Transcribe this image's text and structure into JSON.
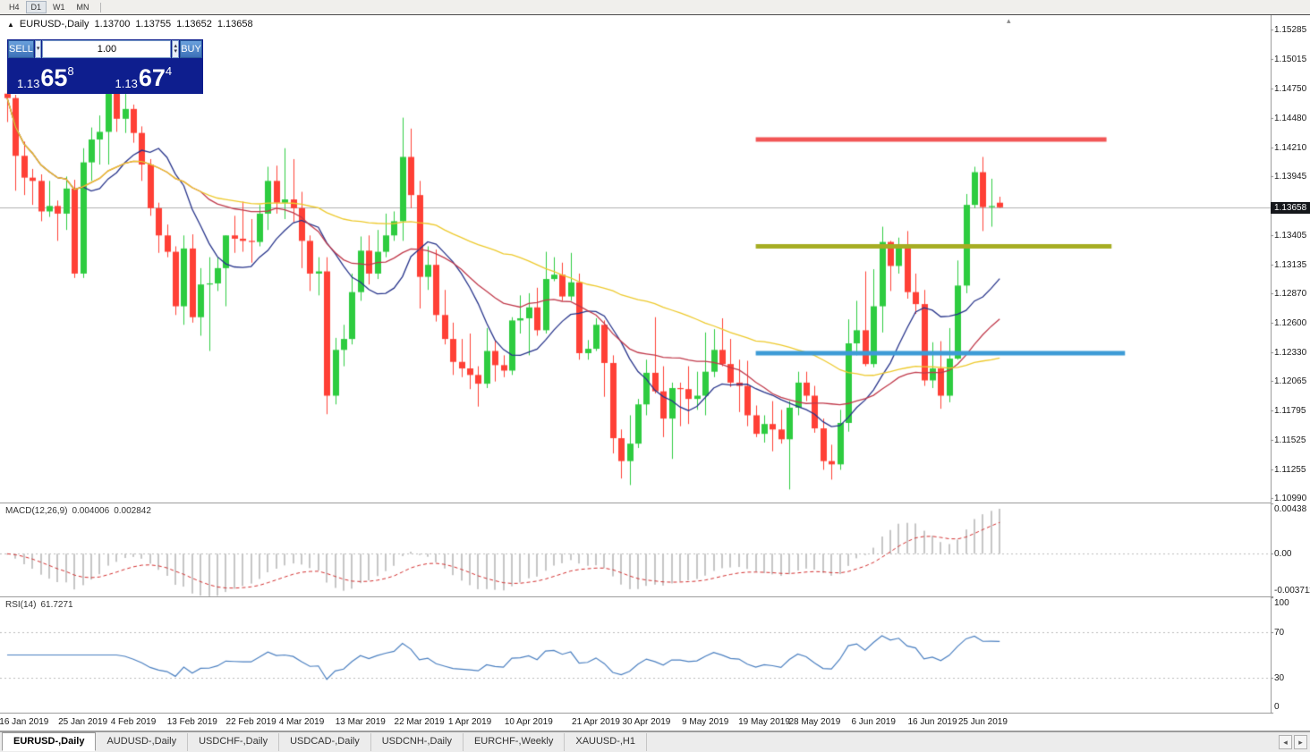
{
  "toolbar": {
    "timeframes": [
      "H4",
      "D1",
      "W1",
      "MN"
    ],
    "active": "D1"
  },
  "chart_header": {
    "symbol_title": "EURUSD-,Daily",
    "ohlc": {
      "open": "1.13700",
      "high": "1.13755",
      "low": "1.13652",
      "close": "1.13658"
    }
  },
  "trade_panel": {
    "sell_label": "SELL",
    "buy_label": "BUY",
    "volume": "1.00",
    "sell_price": {
      "prefix": "1.13",
      "big": "65",
      "sup": "8"
    },
    "buy_price": {
      "prefix": "1.13",
      "big": "67",
      "sup": "4"
    }
  },
  "price_axis": {
    "labels": [
      "1.15285",
      "1.15015",
      "1.14750",
      "1.14480",
      "1.14210",
      "1.13945",
      "1.13675",
      "1.13405",
      "1.13135",
      "1.12870",
      "1.12600",
      "1.12330",
      "1.12065",
      "1.11795",
      "1.11525",
      "1.11255",
      "1.10990"
    ],
    "bid_badge": "1.13658"
  },
  "macd_panel": {
    "label": "MACD(12,26,9)",
    "value_main": "0.004006",
    "value_signal": "0.002842",
    "axis_labels": [
      {
        "t": "0.00438",
        "v": 0.00438
      },
      {
        "t": "0.00",
        "v": 0
      },
      {
        "t": "-0.003711",
        "v": -0.003711
      }
    ]
  },
  "rsi_panel": {
    "label": "RSI(14)",
    "value": "61.7271",
    "axis_labels": [
      {
        "t": "100",
        "v": 100
      },
      {
        "t": "70",
        "v": 70
      },
      {
        "t": "30",
        "v": 30
      },
      {
        "t": "0",
        "v": 0
      }
    ],
    "levels": [
      70,
      30
    ]
  },
  "time_axis": {
    "labels": [
      {
        "t": "16 Jan 2019",
        "i": 2
      },
      {
        "t": "25 Jan 2019",
        "i": 9
      },
      {
        "t": "4 Feb 2019",
        "i": 15
      },
      {
        "t": "13 Feb 2019",
        "i": 22
      },
      {
        "t": "22 Feb 2019",
        "i": 29
      },
      {
        "t": "4 Mar 2019",
        "i": 35
      },
      {
        "t": "13 Mar 2019",
        "i": 42
      },
      {
        "t": "22 Mar 2019",
        "i": 49
      },
      {
        "t": "1 Apr 2019",
        "i": 55
      },
      {
        "t": "10 Apr 2019",
        "i": 62
      },
      {
        "t": "21 Apr 2019",
        "i": 70
      },
      {
        "t": "30 Apr 2019",
        "i": 76
      },
      {
        "t": "9 May 2019",
        "i": 83
      },
      {
        "t": "19 May 2019",
        "i": 90
      },
      {
        "t": "28 May 2019",
        "i": 96
      },
      {
        "t": "6 Jun 2019",
        "i": 103
      },
      {
        "t": "16 Jun 2019",
        "i": 110
      },
      {
        "t": "25 Jun 2019",
        "i": 116
      }
    ]
  },
  "tabs": {
    "items": [
      "EURUSD-,Daily",
      "AUDUSD-,Daily",
      "USDCHF-,Daily",
      "USDCAD-,Daily",
      "USDCNH-,Daily",
      "EURCHF-,Weekly",
      "XAUUSD-,H1"
    ],
    "active": 0
  },
  "colors": {
    "up": "#2ecc40",
    "down": "#ff4036",
    "ma_fast": "#27348b",
    "ma_mid": "#c0394a",
    "ma_slow": "#edc92c",
    "bid_line": "#b0b0b0",
    "macd_hist": "#c6c6c6",
    "macd_signal": "#d22f2f",
    "rsi_line": "#4a7fc0",
    "level_dotted": "#bbbbbb",
    "badge_bg": "#15171b"
  },
  "chart_data": {
    "type": "candlestick",
    "symbol": "EURUSD-",
    "timeframe": "Daily",
    "bid_price": 1.13658,
    "price_range": {
      "top": 1.1542,
      "bottom": 1.1095
    },
    "moving_averages": [
      {
        "name": "fast-ma",
        "period": 10,
        "color": "#27348b"
      },
      {
        "name": "medium-ma",
        "period": 24,
        "color": "#c0394a"
      },
      {
        "name": "slow-ma",
        "period": 52,
        "color": "#edc92c"
      }
    ],
    "hlines": [
      {
        "name": "resistance-line",
        "price": 1.1428,
        "color": "#f25656",
        "from_idx": 89,
        "to_idx": 130.7,
        "width": 5
      },
      {
        "name": "mid-line",
        "price": 1.133,
        "color": "#a6ad23",
        "from_idx": 89,
        "to_idx": 131.3,
        "width": 5
      },
      {
        "name": "support-line",
        "price": 1.1232,
        "color": "#3d9bd6",
        "from_idx": 89,
        "to_idx": 132.9,
        "width": 5
      }
    ],
    "macd": {
      "fast": 12,
      "slow": 26,
      "signal": 9,
      "scale_max": 0.00438,
      "scale_min": -0.003711,
      "current_main": 0.004006,
      "current_signal": 0.002842
    },
    "rsi": {
      "period": 14,
      "current": 61.7271
    },
    "candles": [
      [
        1.147,
        1.1482,
        1.1444,
        1.1466
      ],
      [
        1.1466,
        1.1469,
        1.1381,
        1.1413
      ],
      [
        1.1413,
        1.1426,
        1.1377,
        1.1393
      ],
      [
        1.1393,
        1.1401,
        1.1368,
        1.139
      ],
      [
        1.139,
        1.1396,
        1.1353,
        1.1362
      ],
      [
        1.1362,
        1.139,
        1.1357,
        1.1367
      ],
      [
        1.1367,
        1.1372,
        1.1335,
        1.136
      ],
      [
        1.136,
        1.1394,
        1.1345,
        1.1383
      ],
      [
        1.1383,
        1.1391,
        1.1301,
        1.1305
      ],
      [
        1.1305,
        1.142,
        1.1301,
        1.1407
      ],
      [
        1.1407,
        1.1439,
        1.139,
        1.1428
      ],
      [
        1.1428,
        1.145,
        1.1405,
        1.1435
      ],
      [
        1.1435,
        1.1501,
        1.1405,
        1.1481
      ],
      [
        1.1481,
        1.1515,
        1.1435,
        1.1447
      ],
      [
        1.1447,
        1.1488,
        1.1434,
        1.1456
      ],
      [
        1.1456,
        1.146,
        1.1425,
        1.1434
      ],
      [
        1.1434,
        1.144,
        1.139,
        1.1405
      ],
      [
        1.1405,
        1.141,
        1.1358,
        1.1365
      ],
      [
        1.1365,
        1.137,
        1.1324,
        1.134
      ],
      [
        1.134,
        1.135,
        1.132,
        1.1325
      ],
      [
        1.1325,
        1.133,
        1.1267,
        1.1275
      ],
      [
        1.1275,
        1.134,
        1.1258,
        1.1328
      ],
      [
        1.1328,
        1.1341,
        1.126,
        1.1265
      ],
      [
        1.1265,
        1.131,
        1.1248,
        1.1295
      ],
      [
        1.1295,
        1.132,
        1.1234,
        1.1296
      ],
      [
        1.1296,
        1.132,
        1.1289,
        1.131
      ],
      [
        1.131,
        1.134,
        1.1275,
        1.134
      ],
      [
        1.134,
        1.1358,
        1.1324,
        1.1337
      ],
      [
        1.1337,
        1.1371,
        1.1325,
        1.1335
      ],
      [
        1.1335,
        1.1355,
        1.1315,
        1.1334
      ],
      [
        1.1334,
        1.1368,
        1.133,
        1.136
      ],
      [
        1.136,
        1.1403,
        1.1345,
        1.139
      ],
      [
        1.139,
        1.1404,
        1.136,
        1.137
      ],
      [
        1.137,
        1.142,
        1.1355,
        1.1373
      ],
      [
        1.1373,
        1.141,
        1.1352,
        1.1365
      ],
      [
        1.1365,
        1.138,
        1.131,
        1.1335
      ],
      [
        1.1335,
        1.134,
        1.1289,
        1.1305
      ],
      [
        1.1305,
        1.132,
        1.1285,
        1.1307
      ],
      [
        1.1307,
        1.132,
        1.1176,
        1.1193
      ],
      [
        1.1193,
        1.1246,
        1.1185,
        1.1235
      ],
      [
        1.1235,
        1.1258,
        1.122,
        1.1245
      ],
      [
        1.1245,
        1.1305,
        1.124,
        1.1288
      ],
      [
        1.1288,
        1.1339,
        1.128,
        1.1326
      ],
      [
        1.1326,
        1.134,
        1.1295,
        1.1305
      ],
      [
        1.1305,
        1.1345,
        1.13,
        1.1325
      ],
      [
        1.1325,
        1.136,
        1.132,
        1.134
      ],
      [
        1.134,
        1.1362,
        1.1335,
        1.1353
      ],
      [
        1.1353,
        1.1448,
        1.1335,
        1.1412
      ],
      [
        1.1412,
        1.1438,
        1.1365,
        1.1377
      ],
      [
        1.1377,
        1.139,
        1.1273,
        1.1302
      ],
      [
        1.1302,
        1.133,
        1.129,
        1.1313
      ],
      [
        1.1313,
        1.1327,
        1.1261,
        1.1267
      ],
      [
        1.1267,
        1.129,
        1.124,
        1.1245
      ],
      [
        1.1245,
        1.126,
        1.1212,
        1.1224
      ],
      [
        1.1224,
        1.1245,
        1.121,
        1.1218
      ],
      [
        1.1218,
        1.125,
        1.1199,
        1.1212
      ],
      [
        1.1212,
        1.122,
        1.1183,
        1.1204
      ],
      [
        1.1204,
        1.1255,
        1.12,
        1.1234
      ],
      [
        1.1234,
        1.1244,
        1.1206,
        1.1221
      ],
      [
        1.1221,
        1.123,
        1.121,
        1.1216
      ],
      [
        1.1216,
        1.1265,
        1.1212,
        1.1262
      ],
      [
        1.1262,
        1.1285,
        1.125,
        1.1264
      ],
      [
        1.1264,
        1.1287,
        1.123,
        1.1274
      ],
      [
        1.1274,
        1.1292,
        1.1248,
        1.1253
      ],
      [
        1.1253,
        1.1325,
        1.125,
        1.13
      ],
      [
        1.13,
        1.132,
        1.1298,
        1.1304
      ],
      [
        1.1304,
        1.1315,
        1.128,
        1.1284
      ],
      [
        1.1284,
        1.1324,
        1.128,
        1.1297
      ],
      [
        1.1297,
        1.1305,
        1.1226,
        1.1232
      ],
      [
        1.1232,
        1.1244,
        1.1226,
        1.1236
      ],
      [
        1.1236,
        1.1264,
        1.1234,
        1.1258
      ],
      [
        1.1258,
        1.1262,
        1.1192,
        1.1223
      ],
      [
        1.1223,
        1.123,
        1.114,
        1.1154
      ],
      [
        1.1154,
        1.1162,
        1.1117,
        1.1133
      ],
      [
        1.1133,
        1.1175,
        1.1111,
        1.1149
      ],
      [
        1.1149,
        1.119,
        1.1145,
        1.1185
      ],
      [
        1.1185,
        1.1226,
        1.1175,
        1.1214
      ],
      [
        1.1214,
        1.1265,
        1.1195,
        1.1197
      ],
      [
        1.1197,
        1.122,
        1.1155,
        1.1172
      ],
      [
        1.1172,
        1.1205,
        1.1135,
        1.12
      ],
      [
        1.12,
        1.1205,
        1.1165,
        1.1199
      ],
      [
        1.1199,
        1.122,
        1.1167,
        1.119
      ],
      [
        1.119,
        1.1215,
        1.118,
        1.1193
      ],
      [
        1.1193,
        1.1251,
        1.1175,
        1.1215
      ],
      [
        1.1215,
        1.1254,
        1.121,
        1.1235
      ],
      [
        1.1235,
        1.1264,
        1.122,
        1.1222
      ],
      [
        1.1222,
        1.1245,
        1.1201,
        1.1205
      ],
      [
        1.1205,
        1.1226,
        1.1178,
        1.1202
      ],
      [
        1.1202,
        1.1225,
        1.1165,
        1.1175
      ],
      [
        1.1175,
        1.1184,
        1.1155,
        1.1158
      ],
      [
        1.1158,
        1.1175,
        1.115,
        1.1167
      ],
      [
        1.1167,
        1.1188,
        1.1142,
        1.1162
      ],
      [
        1.1162,
        1.118,
        1.1149,
        1.1153
      ],
      [
        1.1153,
        1.1188,
        1.1107,
        1.1182
      ],
      [
        1.1182,
        1.1215,
        1.1175,
        1.1205
      ],
      [
        1.1205,
        1.1215,
        1.1188,
        1.1193
      ],
      [
        1.1193,
        1.1202,
        1.1159,
        1.1163
      ],
      [
        1.1163,
        1.1172,
        1.1125,
        1.1133
      ],
      [
        1.1133,
        1.1148,
        1.1116,
        1.113
      ],
      [
        1.113,
        1.118,
        1.1125,
        1.1168
      ],
      [
        1.1168,
        1.1263,
        1.116,
        1.1241
      ],
      [
        1.1241,
        1.128,
        1.123,
        1.1253
      ],
      [
        1.1253,
        1.1307,
        1.122,
        1.1222
      ],
      [
        1.1222,
        1.1309,
        1.1219,
        1.1275
      ],
      [
        1.1275,
        1.1348,
        1.1251,
        1.1334
      ],
      [
        1.1334,
        1.1335,
        1.1289,
        1.1312
      ],
      [
        1.1312,
        1.1338,
        1.1305,
        1.1328
      ],
      [
        1.1328,
        1.1344,
        1.1282,
        1.1288
      ],
      [
        1.1288,
        1.1305,
        1.1268,
        1.1277
      ],
      [
        1.1277,
        1.129,
        1.1202,
        1.1207
      ],
      [
        1.1207,
        1.1242,
        1.12,
        1.1218
      ],
      [
        1.1218,
        1.1243,
        1.1181,
        1.1193
      ],
      [
        1.1193,
        1.1255,
        1.1187,
        1.1227
      ],
      [
        1.1227,
        1.1317,
        1.1226,
        1.1294
      ],
      [
        1.1294,
        1.1378,
        1.1287,
        1.1368
      ],
      [
        1.1368,
        1.1403,
        1.1365,
        1.1398
      ],
      [
        1.1398,
        1.1412,
        1.1344,
        1.1366
      ],
      [
        1.1366,
        1.1392,
        1.1348,
        1.1367
      ],
      [
        1.137,
        1.13755,
        1.13652,
        1.13658
      ]
    ]
  }
}
